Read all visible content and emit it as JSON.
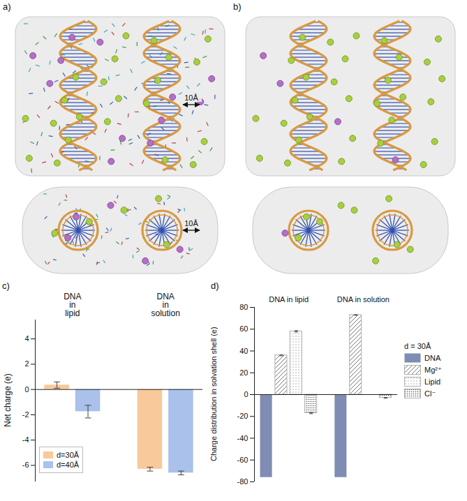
{
  "panels": [
    {
      "label": "a)",
      "annotations": [
        "10Å",
        "10Å"
      ]
    },
    {
      "label": "b)"
    }
  ],
  "chart_data": [
    {
      "type": "bar",
      "panel": "c)",
      "categories": [
        "DNA in lipid",
        "DNA in solution"
      ],
      "ylabel": "Net charge (e)",
      "ylim": [
        -7.3,
        5.5
      ],
      "yticks": [
        -6,
        -4,
        -2,
        0,
        2,
        4
      ],
      "tick_labels": "y",
      "legend": "lower left",
      "series": [
        {
          "name": "d=30Å",
          "color": "#f7c99b",
          "values": [
            0.35,
            -6.3
          ],
          "errors": [
            0.25,
            0.15
          ]
        },
        {
          "name": "d=40Å",
          "color": "#a9c1eb",
          "values": [
            -1.75,
            -6.6
          ],
          "errors": [
            0.5,
            0.15
          ]
        }
      ]
    },
    {
      "type": "bar",
      "panel": "d)",
      "categories": [
        "DNA in lipid",
        "DNA in solution"
      ],
      "ylabel": "Charge distribution in solvation shell (e)",
      "ylim": [
        -80,
        80
      ],
      "yticks": [
        -80,
        -60,
        -40,
        -20,
        0,
        20,
        40,
        60,
        80
      ],
      "tick_labels": "y",
      "legend": "right",
      "legend_title": "d = 30Å",
      "series": [
        {
          "name": "DNA",
          "color": "#7f8db4",
          "values": [
            -76,
            -76
          ]
        },
        {
          "name": "Mg²⁺",
          "color": "#777777",
          "values": [
            36,
            73
          ],
          "errors": [
            0.4,
            0.3
          ]
        },
        {
          "name": "Lipid",
          "color": "#999999",
          "values": [
            58,
            null
          ],
          "errors": [
            0.6,
            null
          ]
        },
        {
          "name": "Cl⁻",
          "color": "#555555",
          "values": [
            -17,
            -3
          ],
          "errors": [
            0.5,
            0.3
          ]
        }
      ]
    }
  ]
}
